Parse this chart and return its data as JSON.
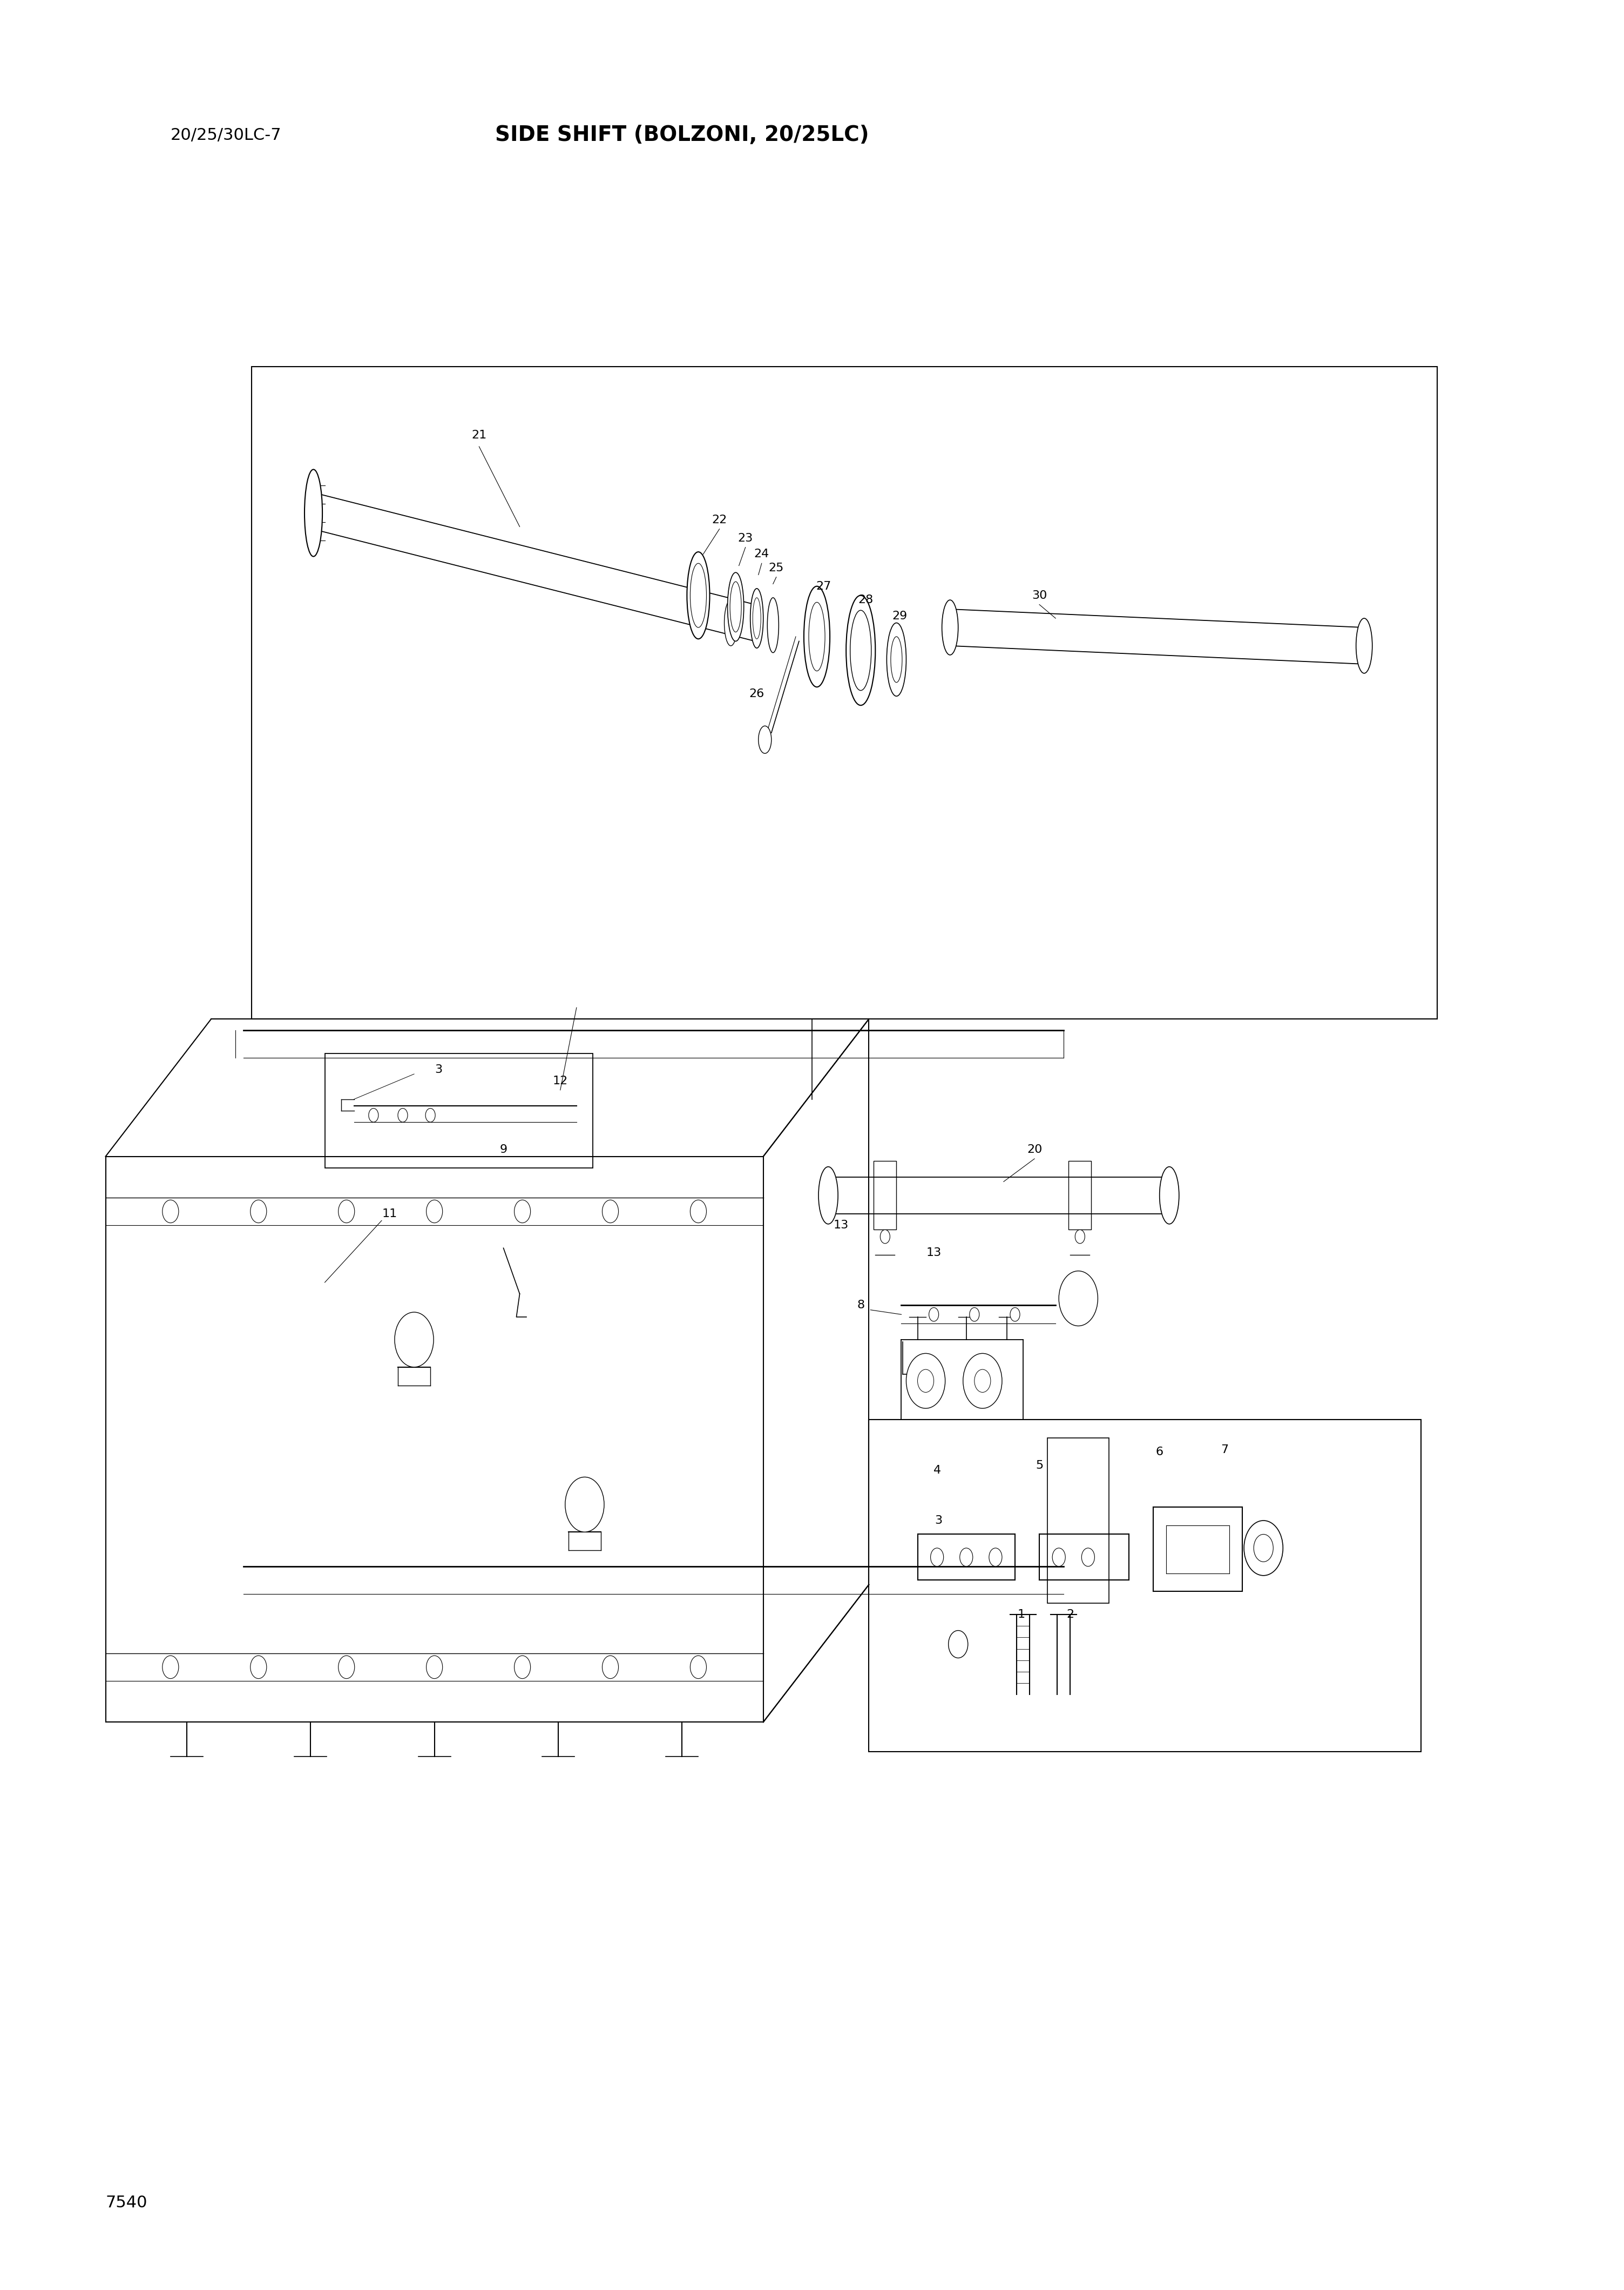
{
  "page_width": 30.08,
  "page_height": 42.41,
  "background_color": "#ffffff",
  "header_left_text": "20/25/30LC-7",
  "header_center_text": "SIDE SHIFT (BOLZONI, 20/25LC)",
  "footer_text": "7540",
  "header_font_size": 22,
  "title_font_size": 28,
  "label_font_size": 16,
  "small_label_font_size": 14,
  "line_color": "#000000"
}
